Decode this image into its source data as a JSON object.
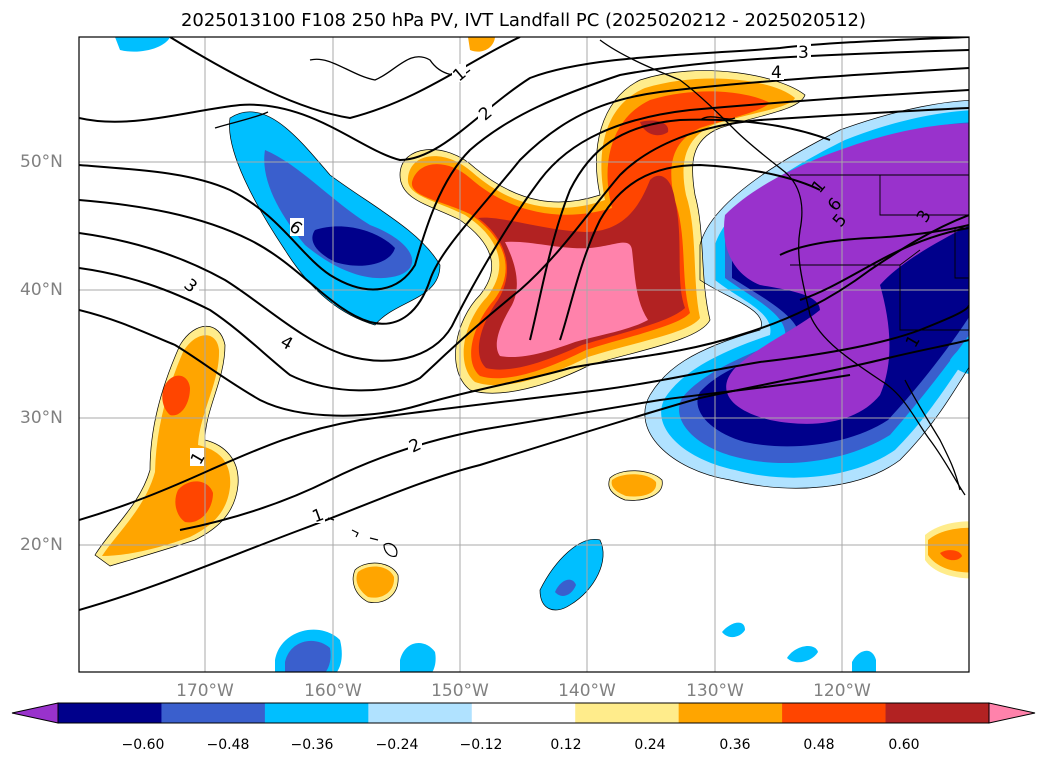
{
  "title": "2025013100 F108 250 hPa PV, IVT Landfall PC (2025020212 - 2025020512)",
  "lat_labels": [
    "50°N",
    "40°N",
    "30°N",
    "20°N"
  ],
  "lon_labels": [
    "170°W",
    "160°W",
    "150°W",
    "140°W",
    "130°W",
    "120°W"
  ],
  "colorbar": {
    "ticks": [
      "−0.60",
      "−0.48",
      "−0.36",
      "−0.24",
      "−0.12",
      "0.12",
      "0.24",
      "0.36",
      "0.48",
      "0.60"
    ],
    "colors": [
      "#9932CC",
      "#00008B",
      "#3A5FCD",
      "#00BFFF",
      "#B0E2FF",
      "#FFFFFF",
      "#FFEC8B",
      "#FFA500",
      "#FF4500",
      "#B22222",
      "#FF82AB"
    ]
  },
  "contour_labels": [
    "1",
    "1",
    "1",
    "1",
    "2",
    "2",
    "3",
    "3",
    "3",
    "4",
    "4",
    "5",
    "6",
    "6",
    "1"
  ]
}
